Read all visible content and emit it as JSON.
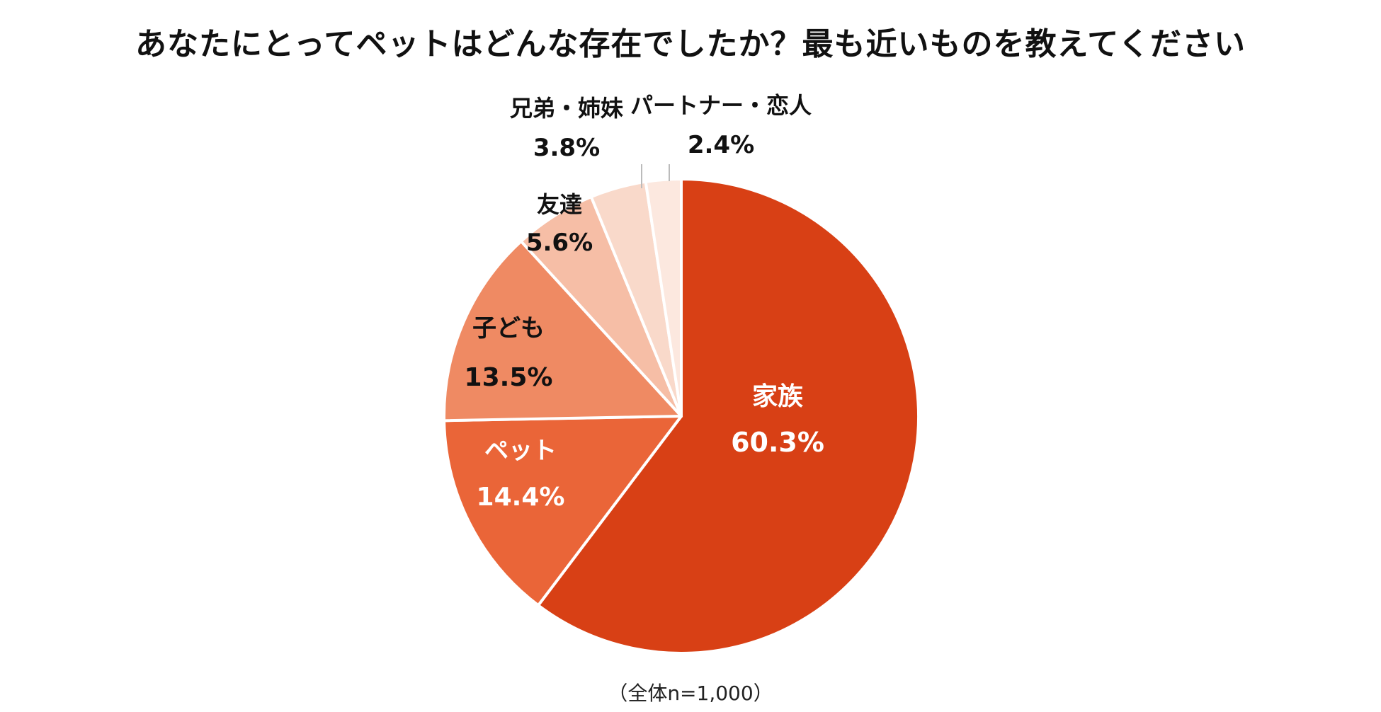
{
  "chart_data": {
    "type": "pie",
    "title": "あなたにとってペットはどんな存在でしたか？最も近いものを教えてください",
    "note": "（全体n=1,000）",
    "slices": [
      {
        "name": "家族",
        "value": 60.3,
        "value_label": "60.3%",
        "color": "#d84015",
        "label_color": "#ffffff"
      },
      {
        "name": "ペット",
        "value": 14.4,
        "value_label": "14.4%",
        "color": "#ea6538",
        "label_color": "#ffffff"
      },
      {
        "name": "子ども",
        "value": 13.5,
        "value_label": "13.5%",
        "color": "#ef8a63",
        "label_color": "#111111"
      },
      {
        "name": "友達",
        "value": 5.6,
        "value_label": "5.6%",
        "color": "#f6bea6",
        "label_color": "#111111"
      },
      {
        "name": "兄弟・姉妹",
        "value": 3.8,
        "value_label": "3.8%",
        "color": "#f9d9ca",
        "label_color": "#111111"
      },
      {
        "name": "パートナー・恋人",
        "value": 2.4,
        "value_label": "2.4%",
        "color": "#fce8df",
        "label_color": "#111111"
      }
    ],
    "start": "top",
    "direction": "clockwise",
    "legend": "none"
  }
}
